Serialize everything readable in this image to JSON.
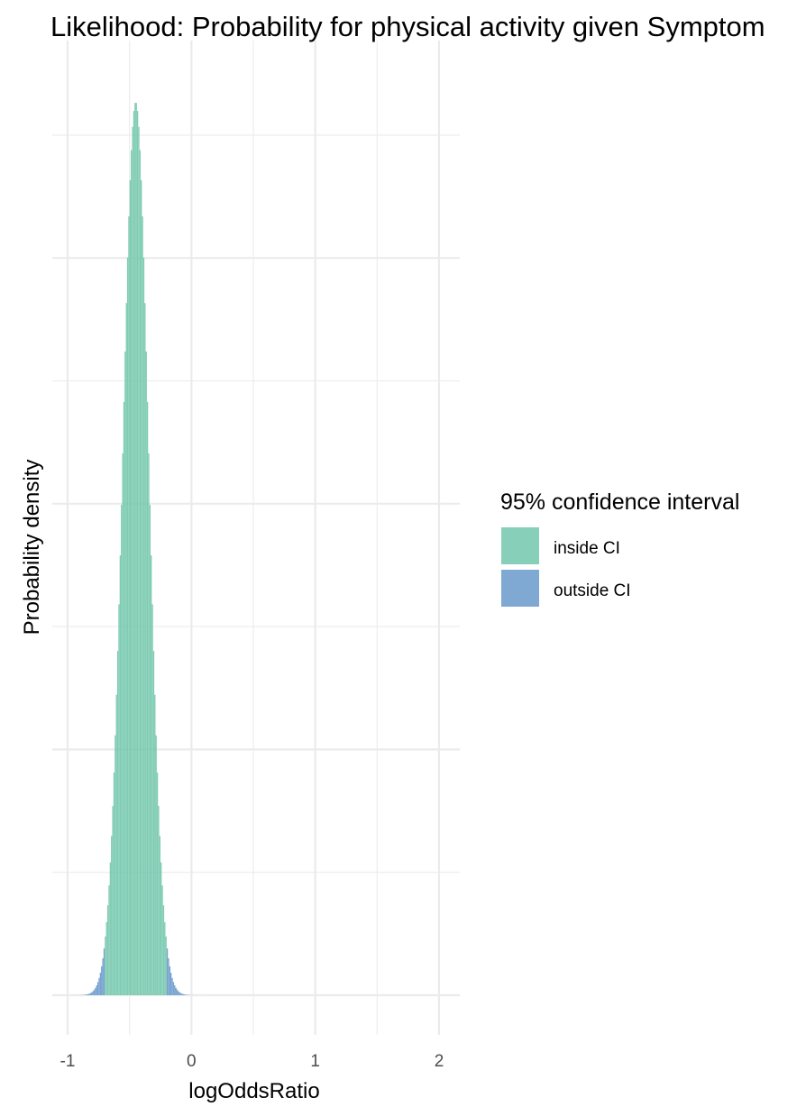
{
  "chart_data": {
    "type": "area",
    "title": "Likelihood: Probability for physical activity given Symptom",
    "xlabel": "logOddsRatio",
    "ylabel": "Probability density",
    "xlim": [
      -1.05,
      2.1
    ],
    "x_ticks": [
      -1,
      0,
      1,
      2
    ],
    "x_tick_labels": [
      "-1",
      "0",
      "1",
      "2"
    ],
    "y_tick_labels_shown": false,
    "grid": true,
    "distribution": {
      "shape": "normal",
      "mean": -0.45,
      "sd": 0.105,
      "x_range": [
        -0.98,
        0.12
      ],
      "ci_lower": -0.7,
      "ci_upper": -0.2,
      "peak_density": 3.8
    },
    "legend": {
      "title": "95% confidence interval",
      "position": "right",
      "entries": [
        {
          "label": "inside CI",
          "color": "#66c2a5"
        },
        {
          "label": "outside CI",
          "color": "#5b8fc7"
        }
      ]
    },
    "colors": {
      "inside": "#66c2a5",
      "outside": "#5b8fc7"
    }
  }
}
